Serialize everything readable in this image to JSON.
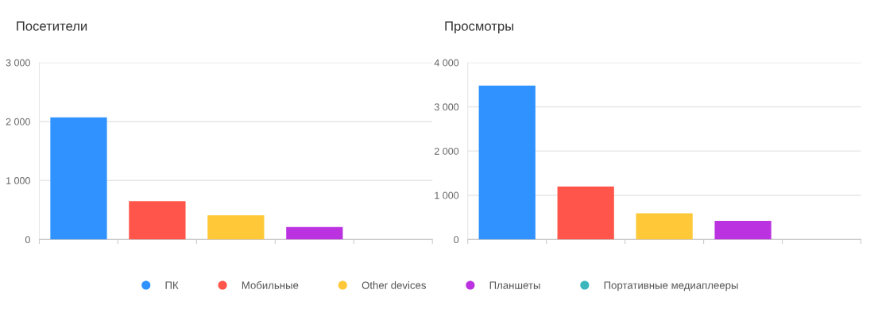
{
  "chart_data": [
    {
      "type": "bar",
      "title": "Посетители",
      "categories": [
        null
      ],
      "ylim": [
        0,
        3000
      ],
      "yticks": [
        0,
        {
          "value": 1000,
          "label": "1 000"
        },
        {
          "value": 2000,
          "label": "2 000"
        },
        {
          "value": 3000,
          "label": "3 000"
        }
      ],
      "grid": "y",
      "legend": "bottom",
      "series": [
        {
          "name": "ПК",
          "color": "#2f92ff",
          "values": [
            2070
          ]
        },
        {
          "name": "Мобильные",
          "color": "#ff554a",
          "values": [
            650
          ]
        },
        {
          "name": "Other devices",
          "color": "#fec838",
          "values": [
            410
          ]
        },
        {
          "name": "Планшеты",
          "color": "#bb33e0",
          "values": [
            210
          ]
        },
        {
          "name": "Портативные медиаплееры",
          "color": "#3bb6bd",
          "values": [
            0
          ]
        }
      ]
    },
    {
      "type": "bar",
      "title": "Просмотры",
      "categories": [
        null
      ],
      "ylim": [
        0,
        4000
      ],
      "yticks": [
        0,
        {
          "value": 1000,
          "label": "1 000"
        },
        {
          "value": 2000,
          "label": "2 000"
        },
        {
          "value": 3000,
          "label": "3 000"
        },
        {
          "value": 4000,
          "label": "4 000"
        }
      ],
      "grid": "y",
      "series": [
        {
          "color": "#2f92ff",
          "values": [
            3480
          ]
        },
        {
          "color": "#ff554a",
          "values": [
            1200
          ]
        },
        {
          "color": "#fec838",
          "values": [
            590
          ]
        },
        {
          "color": "#bb33e0",
          "values": [
            420
          ]
        },
        {
          "color": "#3bb6bd",
          "values": [
            0
          ]
        }
      ]
    }
  ]
}
